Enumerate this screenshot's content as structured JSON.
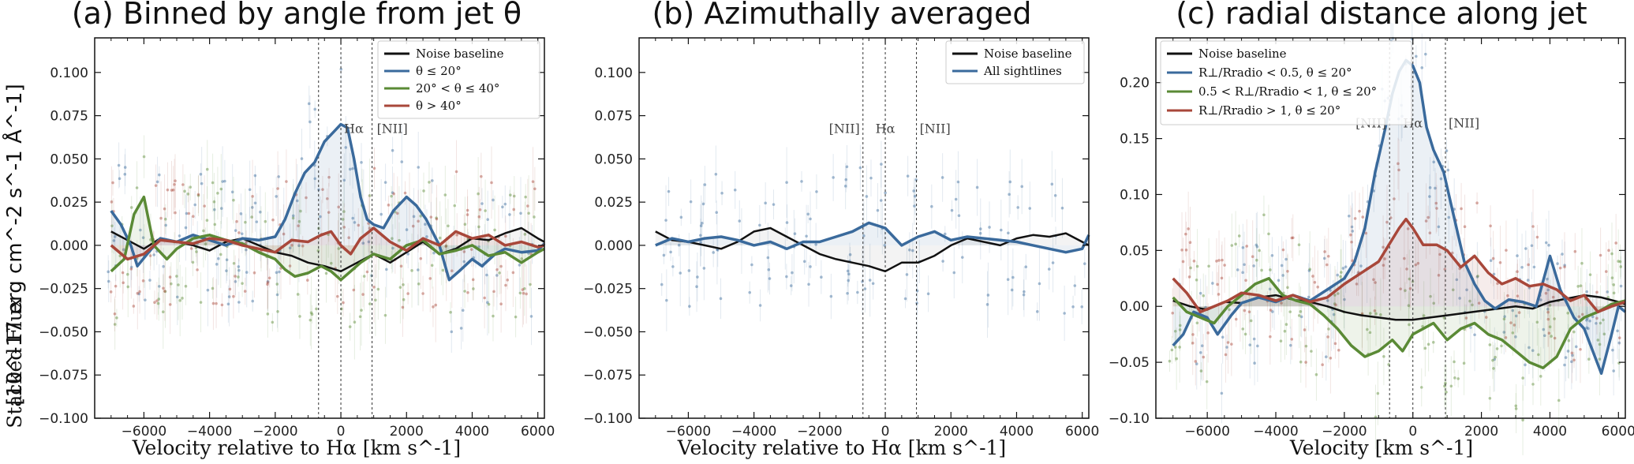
{
  "figure": {
    "ylabel": "Stacked Flux [10^-17 erg cm^-2 s^-1 Å^-1]",
    "ylabel_main": "[10^-17 erg cm^-2 s^-1 Å^-1]",
    "ylabel_prefix": "Stacked Flux"
  },
  "colors": {
    "noise": "#111111",
    "blue": "#3a6a9c",
    "green": "#5a8a35",
    "red": "#a8473a"
  },
  "chart_data": [
    {
      "type": "line",
      "title": "(a) Binned by angle from jet θ",
      "xlabel": "Velocity relative to Hα [km s^-1]",
      "ylabel": "Stacked Flux [10^-17 erg cm^-2 s^-1 Å^-1]",
      "xlim": [
        -7500,
        6200
      ],
      "ylim": [
        -0.1,
        0.12
      ],
      "xticks": [
        -6000,
        -4000,
        -2000,
        0,
        2000,
        4000,
        6000
      ],
      "yticks": [
        -0.1,
        -0.075,
        -0.05,
        -0.025,
        0.0,
        0.025,
        0.05,
        0.075,
        0.1
      ],
      "ytick_labels": [
        "−0.100",
        "−0.075",
        "−0.050",
        "−0.025",
        "0.000",
        "0.025",
        "0.050",
        "0.075",
        "0.100"
      ],
      "xtick_labels": [
        "−6000",
        "−4000",
        "−2000",
        "0",
        "2000",
        "4000",
        "6000"
      ],
      "line_markers": [
        {
          "x": -680,
          "label": ""
        },
        {
          "x": 0,
          "label": "Hα"
        },
        {
          "x": 950,
          "label": "[NII]"
        }
      ],
      "legend_position": "top-right",
      "series": [
        {
          "name": "Noise baseline",
          "color_key": "noise",
          "x": [
            -7000,
            -6500,
            -6000,
            -5500,
            -5000,
            -4500,
            -4000,
            -3500,
            -3000,
            -2500,
            -2000,
            -1500,
            -1000,
            -500,
            0,
            500,
            1000,
            1500,
            2000,
            2500,
            3000,
            3500,
            4000,
            4500,
            5000,
            5500,
            6000,
            6200
          ],
          "y": [
            0.008,
            0.003,
            -0.002,
            0.004,
            0.002,
            0.0,
            -0.003,
            0.002,
            0.004,
            0.0,
            -0.004,
            -0.006,
            -0.01,
            -0.012,
            -0.015,
            -0.01,
            -0.005,
            -0.01,
            -0.004,
            0.002,
            -0.005,
            -0.002,
            0.004,
            0.003,
            0.007,
            0.01,
            0.004,
            0.002
          ]
        },
        {
          "name": "θ ≤ 20°",
          "color_key": "blue",
          "x": [
            -7000,
            -6700,
            -6400,
            -6200,
            -5900,
            -5500,
            -5000,
            -4500,
            -4000,
            -3500,
            -3000,
            -2500,
            -2000,
            -1700,
            -1400,
            -1100,
            -800,
            -500,
            -200,
            0,
            200,
            400,
            600,
            800,
            1000,
            1300,
            1600,
            2000,
            2300,
            2600,
            3000,
            3300,
            3600,
            4000,
            4300,
            4700,
            5000,
            5500,
            6000,
            6200
          ],
          "y": [
            0.02,
            0.012,
            0.0,
            -0.012,
            -0.005,
            0.004,
            0.002,
            0.006,
            0.003,
            0.0,
            0.004,
            0.003,
            0.005,
            0.015,
            0.03,
            0.042,
            0.048,
            0.06,
            0.066,
            0.07,
            0.068,
            0.05,
            0.028,
            0.015,
            0.012,
            0.01,
            0.02,
            0.028,
            0.023,
            0.015,
            0.0,
            -0.02,
            -0.015,
            -0.008,
            -0.012,
            -0.005,
            -0.002,
            -0.004,
            -0.003,
            0.001
          ]
        },
        {
          "name": "20° < θ ≤ 40°",
          "color_key": "green",
          "x": [
            -7000,
            -6600,
            -6300,
            -6000,
            -5700,
            -5300,
            -5000,
            -4500,
            -4000,
            -3500,
            -3000,
            -2500,
            -2000,
            -1700,
            -1400,
            -1000,
            -600,
            -300,
            0,
            300,
            600,
            1000,
            1500,
            2000,
            2500,
            3000,
            3500,
            4000,
            4500,
            5000,
            5500,
            6000,
            6200
          ],
          "y": [
            -0.015,
            -0.008,
            0.018,
            0.028,
            0.0,
            -0.008,
            -0.002,
            0.004,
            0.006,
            0.003,
            0.001,
            -0.004,
            -0.008,
            -0.014,
            -0.018,
            -0.016,
            -0.012,
            -0.015,
            -0.02,
            -0.015,
            -0.01,
            -0.005,
            -0.008,
            0.0,
            0.003,
            -0.005,
            -0.003,
            0.0,
            -0.006,
            -0.004,
            -0.01,
            -0.004,
            -0.002
          ]
        },
        {
          "name": "θ > 40°",
          "color_key": "red",
          "x": [
            -7000,
            -6500,
            -6000,
            -5500,
            -5000,
            -4500,
            -4000,
            -3500,
            -3000,
            -2500,
            -2000,
            -1500,
            -1000,
            -600,
            -300,
            0,
            300,
            600,
            1000,
            1500,
            2000,
            2500,
            3000,
            3500,
            4000,
            4500,
            5000,
            5500,
            6000,
            6200
          ],
          "y": [
            0.0,
            -0.008,
            -0.005,
            0.003,
            0.002,
            0.001,
            0.004,
            0.003,
            0.0,
            -0.002,
            -0.004,
            0.003,
            0.002,
            0.006,
            0.008,
            0.0,
            -0.005,
            0.004,
            0.01,
            0.002,
            -0.003,
            0.004,
            0.0,
            0.008,
            0.004,
            0.006,
            0.0,
            0.002,
            -0.001,
            0.0
          ]
        }
      ]
    },
    {
      "type": "line",
      "title": "(b) Azimuthally averaged",
      "xlabel": "Velocity relative to Hα [km s^-1]",
      "ylabel": "",
      "xlim": [
        -7500,
        6200
      ],
      "ylim": [
        -0.1,
        0.12
      ],
      "xticks": [
        -6000,
        -4000,
        -2000,
        0,
        2000,
        4000,
        6000
      ],
      "yticks": [
        -0.1,
        -0.075,
        -0.05,
        -0.025,
        0.0,
        0.025,
        0.05,
        0.075,
        0.1
      ],
      "ytick_labels": [
        "−0.100",
        "−0.075",
        "−0.050",
        "−0.025",
        "0.000",
        "0.025",
        "0.050",
        "0.075",
        "0.100"
      ],
      "xtick_labels": [
        "−6000",
        "−4000",
        "−2000",
        "0",
        "2000",
        "4000",
        "6000"
      ],
      "line_markers": [
        {
          "x": -680,
          "label": "[NII]"
        },
        {
          "x": 0,
          "label": "Hα"
        },
        {
          "x": 950,
          "label": "[NII]"
        }
      ],
      "legend_position": "top-right",
      "series": [
        {
          "name": "Noise baseline",
          "color_key": "noise",
          "x": [
            -7000,
            -6500,
            -6000,
            -5500,
            -5000,
            -4500,
            -4000,
            -3500,
            -3000,
            -2500,
            -2000,
            -1500,
            -1000,
            -500,
            0,
            500,
            1000,
            1500,
            2000,
            2500,
            3000,
            3500,
            4000,
            4500,
            5000,
            5500,
            6000,
            6200
          ],
          "y": [
            0.008,
            0.003,
            0.002,
            0.0,
            -0.002,
            0.002,
            0.008,
            0.01,
            0.005,
            0.0,
            -0.005,
            -0.008,
            -0.01,
            -0.012,
            -0.015,
            -0.01,
            -0.01,
            -0.006,
            0.0,
            0.004,
            0.002,
            0.0,
            0.004,
            0.006,
            0.005,
            0.007,
            0.002,
            0.0
          ]
        },
        {
          "name": "All sightlines",
          "color_key": "blue",
          "x": [
            -7000,
            -6500,
            -6000,
            -5500,
            -5000,
            -4500,
            -4000,
            -3500,
            -3000,
            -2500,
            -2000,
            -1500,
            -1000,
            -500,
            0,
            500,
            1000,
            1500,
            2000,
            2500,
            3000,
            3500,
            4000,
            4500,
            5000,
            5500,
            6000,
            6200
          ],
          "y": [
            0.0,
            0.004,
            0.002,
            0.004,
            0.005,
            0.003,
            0.0,
            0.002,
            -0.002,
            0.002,
            0.002,
            0.005,
            0.008,
            0.013,
            0.01,
            0.0,
            0.005,
            0.008,
            0.003,
            0.005,
            0.004,
            0.003,
            0.002,
            0.0,
            -0.002,
            -0.004,
            -0.002,
            0.006
          ]
        }
      ]
    },
    {
      "type": "line",
      "title": "(c) radial distance along jet",
      "xlabel": "Velocity [km s^-1]",
      "ylabel": "",
      "xlim": [
        -7500,
        6200
      ],
      "ylim": [
        -0.1,
        0.24
      ],
      "xticks": [
        -6000,
        -4000,
        -2000,
        0,
        2000,
        4000,
        6000
      ],
      "yticks": [
        -0.1,
        -0.05,
        0.0,
        0.05,
        0.1,
        0.15,
        0.2
      ],
      "ytick_labels": [
        "−0.10",
        "−0.05",
        "0.00",
        "0.05",
        "0.10",
        "0.15",
        "0.20"
      ],
      "xtick_labels": [
        "−6000",
        "−4000",
        "−2000",
        "0",
        "2000",
        "4000",
        "6000"
      ],
      "line_markers": [
        {
          "x": -680,
          "label": "[NII]"
        },
        {
          "x": 0,
          "label": "Hα"
        },
        {
          "x": 950,
          "label": "[NII]"
        }
      ],
      "legend_position": "top-left",
      "series": [
        {
          "name": "Noise baseline",
          "color_key": "noise",
          "x": [
            -7000,
            -6500,
            -6000,
            -5500,
            -5000,
            -4500,
            -4000,
            -3500,
            -3000,
            -2500,
            -2000,
            -1500,
            -1000,
            -500,
            0,
            500,
            1000,
            1500,
            2000,
            2500,
            3000,
            3500,
            4000,
            4500,
            5000,
            5500,
            6000,
            6200
          ],
          "y": [
            0.005,
            0.0,
            -0.003,
            0.004,
            0.003,
            0.008,
            0.01,
            0.006,
            0.004,
            0.0,
            -0.005,
            -0.008,
            -0.01,
            -0.012,
            -0.012,
            -0.01,
            -0.008,
            -0.006,
            -0.004,
            -0.002,
            0.0,
            -0.002,
            0.004,
            0.007,
            0.01,
            0.008,
            0.004,
            0.002
          ]
        },
        {
          "name": "R⊥/Rradio < 0.5, θ ≤ 20°",
          "color_key": "blue",
          "x": [
            -7000,
            -6700,
            -6400,
            -6000,
            -5700,
            -5300,
            -5000,
            -4500,
            -4000,
            -3500,
            -3000,
            -2500,
            -2000,
            -1700,
            -1400,
            -1100,
            -800,
            -600,
            -400,
            -200,
            0,
            200,
            400,
            600,
            900,
            1200,
            1500,
            1800,
            2100,
            2400,
            2800,
            3200,
            3600,
            4000,
            4300,
            4700,
            5000,
            5500,
            5800,
            6000,
            6200
          ],
          "y": [
            -0.035,
            -0.025,
            -0.005,
            -0.01,
            -0.025,
            -0.008,
            0.003,
            0.008,
            0.004,
            0.01,
            0.005,
            0.015,
            0.025,
            0.04,
            0.07,
            0.12,
            0.16,
            0.19,
            0.21,
            0.22,
            0.215,
            0.2,
            0.16,
            0.14,
            0.12,
            0.08,
            0.04,
            0.02,
            0.005,
            -0.002,
            0.006,
            0.004,
            0.0,
            0.045,
            0.015,
            -0.01,
            -0.02,
            -0.06,
            -0.025,
            0.0,
            -0.005
          ]
        },
        {
          "name": "0.5 < R⊥/Rradio < 1, θ ≤ 20°",
          "color_key": "green",
          "x": [
            -7000,
            -6600,
            -6200,
            -5800,
            -5400,
            -5000,
            -4600,
            -4200,
            -3800,
            -3400,
            -3000,
            -2600,
            -2200,
            -1800,
            -1400,
            -1000,
            -600,
            -300,
            0,
            300,
            600,
            1000,
            1400,
            1800,
            2200,
            2600,
            3000,
            3400,
            3800,
            4200,
            4600,
            5000,
            5400,
            5800,
            6200
          ],
          "y": [
            0.008,
            -0.005,
            -0.01,
            -0.015,
            0.0,
            0.01,
            0.02,
            0.025,
            0.01,
            0.005,
            0.002,
            -0.008,
            -0.02,
            -0.035,
            -0.045,
            -0.04,
            -0.03,
            -0.04,
            -0.025,
            -0.02,
            -0.015,
            -0.03,
            -0.02,
            -0.015,
            -0.025,
            -0.03,
            -0.04,
            -0.05,
            -0.055,
            -0.045,
            -0.02,
            -0.01,
            -0.005,
            0.002,
            0.005
          ]
        },
        {
          "name": "R⊥/Rradio > 1, θ ≤ 20°",
          "color_key": "red",
          "x": [
            -7000,
            -6600,
            -6200,
            -5800,
            -5400,
            -5000,
            -4500,
            -4000,
            -3500,
            -3000,
            -2500,
            -2000,
            -1500,
            -1000,
            -700,
            -400,
            -200,
            0,
            300,
            700,
            1000,
            1400,
            1800,
            2200,
            2600,
            3000,
            3400,
            3800,
            4200,
            4600,
            5000,
            5400,
            5800,
            6200
          ],
          "y": [
            0.025,
            0.012,
            -0.005,
            0.0,
            0.005,
            0.012,
            0.01,
            0.005,
            0.01,
            0.004,
            0.008,
            0.02,
            0.03,
            0.04,
            0.055,
            0.07,
            0.078,
            0.07,
            0.055,
            0.055,
            0.05,
            0.035,
            0.045,
            0.03,
            0.02,
            0.025,
            0.018,
            0.02,
            0.015,
            0.005,
            0.01,
            -0.005,
            0.0,
            0.004
          ]
        }
      ]
    }
  ]
}
